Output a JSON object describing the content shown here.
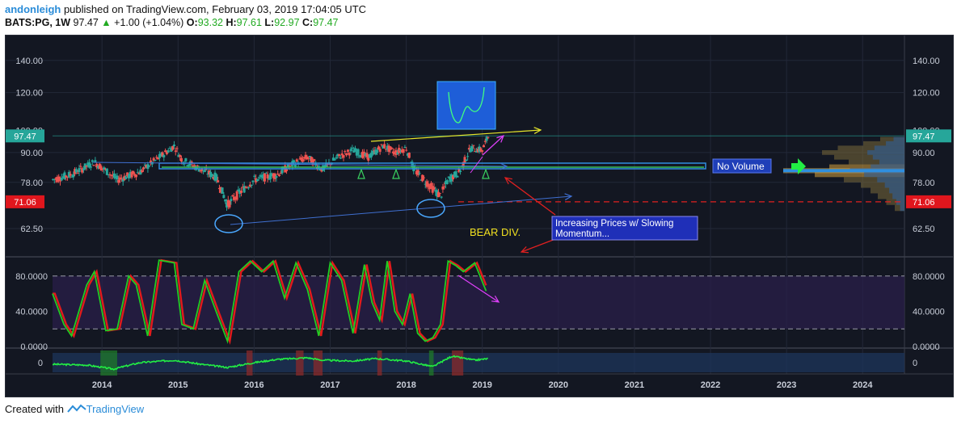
{
  "header": {
    "author": "andonleigh",
    "published": " published on TradingView.com, February 03, 2019 17:04:05 UTC",
    "symbol": "BATS:PG, 1W",
    "last": "97.47",
    "change_arrow": "▲",
    "change": "+1.00 (+1.04%)",
    "o_label": "O:",
    "o_val": "93.32",
    "h_label": "H:",
    "h_val": "97.61",
    "l_label": "L:",
    "l_val": "92.97",
    "c_label": "C:",
    "c_val": "97.47"
  },
  "footer": {
    "created_with": "Created with",
    "brand": "TradingView"
  },
  "colors": {
    "background": "#131722",
    "grid": "#232838",
    "axis_text": "#c8cdd8",
    "up": "#26a69a",
    "down": "#ef5350",
    "last_price_tag": "#26a69a",
    "level_tag": "#e0161d",
    "stoch_k": "#22cc22",
    "stoch_d": "#e21b1b",
    "annotation_blue": "#3f6fd0",
    "annotation_yellow": "#e6e62a",
    "annotation_magenta": "#e040fb",
    "annotation_red": "#e02020"
  },
  "chart_data": [
    {
      "type": "candlestick",
      "symbol": "BATS:PG",
      "interval": "1W",
      "y_ticks": [
        "140.00",
        "120.00",
        "90.00",
        "78.00",
        "62.50"
      ],
      "partial_tick": "100.00",
      "x_ticks": [
        "2014",
        "2015",
        "2016",
        "2017",
        "2018",
        "2019",
        "2020",
        "2021",
        "2022",
        "2023",
        "2024"
      ],
      "ylim": [
        55,
        150
      ],
      "last_price": "97.47",
      "level": "71.06",
      "price_path": [
        [
          2013.35,
          79
        ],
        [
          2013.6,
          81
        ],
        [
          2013.9,
          86
        ],
        [
          2014.2,
          79
        ],
        [
          2014.5,
          82
        ],
        [
          2014.8,
          89
        ],
        [
          2014.95,
          93
        ],
        [
          2015.05,
          87
        ],
        [
          2015.3,
          83
        ],
        [
          2015.5,
          80
        ],
        [
          2015.65,
          70
        ],
        [
          2015.8,
          74
        ],
        [
          2016.0,
          79
        ],
        [
          2016.3,
          81
        ],
        [
          2016.5,
          85
        ],
        [
          2016.7,
          88
        ],
        [
          2016.9,
          83
        ],
        [
          2017.1,
          88
        ],
        [
          2017.3,
          91
        ],
        [
          2017.5,
          88
        ],
        [
          2017.7,
          93
        ],
        [
          2017.85,
          90
        ],
        [
          2018.0,
          92
        ],
        [
          2018.1,
          83
        ],
        [
          2018.3,
          77
        ],
        [
          2018.45,
          73
        ],
        [
          2018.55,
          79
        ],
        [
          2018.7,
          82
        ],
        [
          2018.85,
          92
        ],
        [
          2019.0,
          91
        ],
        [
          2019.08,
          97.47
        ]
      ],
      "volume_profile": {
        "direction": "right-anchored",
        "high_volume_level": 82.5,
        "bins": [
          [
            96,
            0.2
          ],
          [
            94,
            0.34
          ],
          [
            92,
            0.55
          ],
          [
            90,
            0.68
          ],
          [
            88,
            0.58
          ],
          [
            86,
            0.46
          ],
          [
            84,
            0.62
          ],
          [
            82.5,
            1.0
          ],
          [
            81,
            0.74
          ],
          [
            79,
            0.5
          ],
          [
            77,
            0.36
          ],
          [
            75,
            0.28
          ],
          [
            73,
            0.22
          ],
          [
            71,
            0.15
          ],
          [
            69,
            0.08
          ]
        ]
      },
      "annotations": {
        "no_volume_label": "No Volume",
        "bear_div_label": "BEAR DIV.",
        "increasing_label_line1": "Increasing Prices w/ Slowing",
        "increasing_label_line2": "Momentum..."
      }
    },
    {
      "type": "line",
      "name": "stochastic",
      "y_ticks": [
        "80.0000",
        "40.0000",
        "0.0000"
      ],
      "ylim": [
        0,
        100
      ],
      "bands": [
        20,
        80
      ],
      "k_path": [
        [
          2013.35,
          60
        ],
        [
          2013.5,
          25
        ],
        [
          2013.6,
          12
        ],
        [
          2013.8,
          70
        ],
        [
          2013.9,
          85
        ],
        [
          2014.05,
          18
        ],
        [
          2014.2,
          20
        ],
        [
          2014.35,
          80
        ],
        [
          2014.45,
          70
        ],
        [
          2014.6,
          12
        ],
        [
          2014.75,
          98
        ],
        [
          2014.95,
          95
        ],
        [
          2015.05,
          25
        ],
        [
          2015.2,
          20
        ],
        [
          2015.35,
          75
        ],
        [
          2015.5,
          40
        ],
        [
          2015.65,
          6
        ],
        [
          2015.8,
          85
        ],
        [
          2015.95,
          97
        ],
        [
          2016.1,
          85
        ],
        [
          2016.25,
          97
        ],
        [
          2016.4,
          55
        ],
        [
          2016.55,
          95
        ],
        [
          2016.7,
          65
        ],
        [
          2016.85,
          12
        ],
        [
          2017.0,
          95
        ],
        [
          2017.15,
          75
        ],
        [
          2017.3,
          15
        ],
        [
          2017.45,
          93
        ],
        [
          2017.55,
          50
        ],
        [
          2017.65,
          30
        ],
        [
          2017.75,
          97
        ],
        [
          2017.85,
          40
        ],
        [
          2017.95,
          25
        ],
        [
          2018.05,
          60
        ],
        [
          2018.15,
          15
        ],
        [
          2018.25,
          6
        ],
        [
          2018.35,
          10
        ],
        [
          2018.45,
          25
        ],
        [
          2018.55,
          97
        ],
        [
          2018.65,
          92
        ],
        [
          2018.75,
          85
        ],
        [
          2018.9,
          95
        ],
        [
          2019.05,
          63
        ]
      ]
    },
    {
      "type": "line",
      "name": "momentum",
      "y_ticks": [
        "0"
      ],
      "path": [
        [
          2013.35,
          -2
        ],
        [
          2013.8,
          -3
        ],
        [
          2014.15,
          -8
        ],
        [
          2014.5,
          0
        ],
        [
          2014.95,
          3
        ],
        [
          2015.3,
          -2
        ],
        [
          2015.65,
          -6
        ],
        [
          2016.0,
          0
        ],
        [
          2016.3,
          4
        ],
        [
          2016.7,
          6
        ],
        [
          2016.9,
          3
        ],
        [
          2017.3,
          2
        ],
        [
          2017.6,
          5
        ],
        [
          2018.0,
          2
        ],
        [
          2018.35,
          -5
        ],
        [
          2018.6,
          8
        ],
        [
          2018.9,
          3
        ],
        [
          2019.08,
          5
        ]
      ]
    }
  ]
}
